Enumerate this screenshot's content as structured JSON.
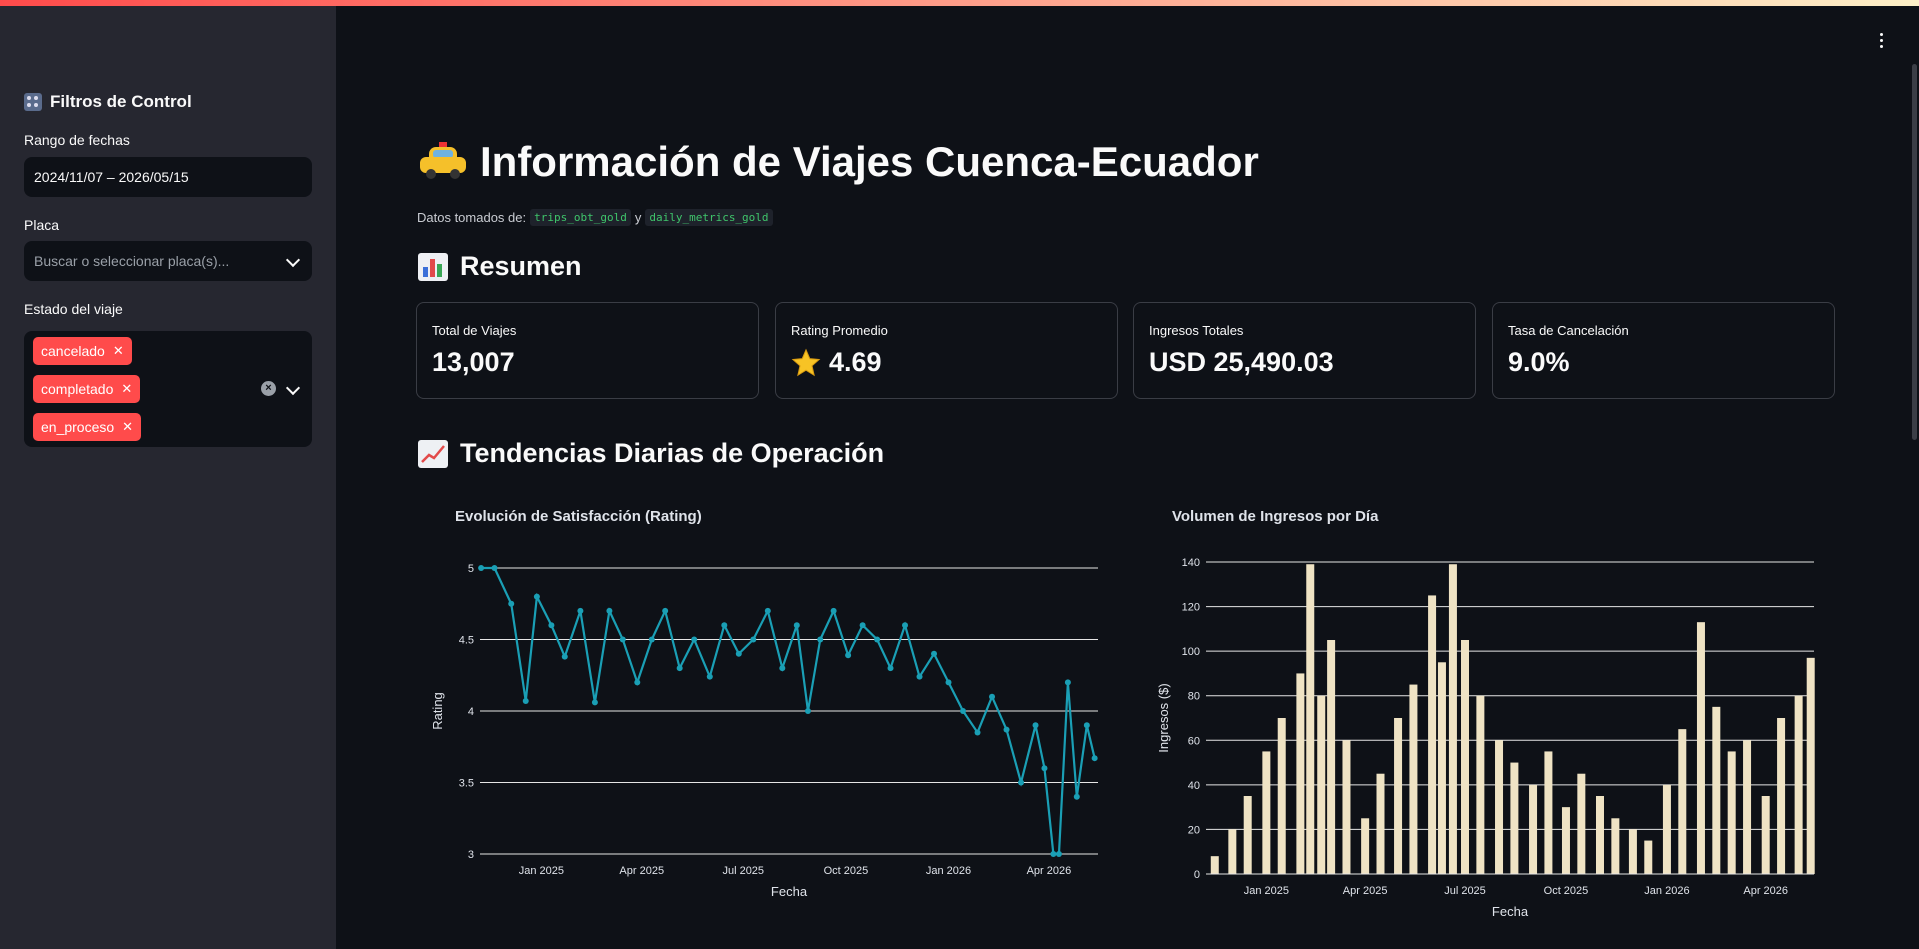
{
  "sidebar": {
    "title": "Filtros de Control",
    "date_label": "Rango de fechas",
    "date_value": "2024/11/07 – 2026/05/15",
    "plate_label": "Placa",
    "plate_placeholder": "Buscar o seleccionar placa(s)...",
    "status_label": "Estado del viaje",
    "status_tags": [
      "cancelado",
      "completado",
      "en_proceso"
    ]
  },
  "header": {
    "title": "Información de Viajes Cuenca-Ecuador",
    "source_prefix": "Datos tomados de:",
    "source_table_1": "trips_obt_gold",
    "source_join": "y",
    "source_table_2": "daily_metrics_gold"
  },
  "summary": {
    "heading": "Resumen",
    "metrics": [
      {
        "label": "Total de Viajes",
        "value": "13,007"
      },
      {
        "label": "Rating Promedio",
        "value": "4.69",
        "icon": "star-icon"
      },
      {
        "label": "Ingresos Totales",
        "value": "USD 25,490.03"
      },
      {
        "label": "Tasa de Cancelación",
        "value": "9.0%"
      }
    ]
  },
  "trends": {
    "heading": "Tendencias Diarias de Operación"
  },
  "chart_data": [
    {
      "type": "line",
      "title": "Evolución de Satisfacción (Rating)",
      "xlabel": "Fecha",
      "ylabel": "Rating",
      "x_ticks": [
        "Jan 2025",
        "Apr 2025",
        "Jul 2025",
        "Oct 2025",
        "Jan 2026",
        "Apr 2026"
      ],
      "x_range": [
        "2024-11-07",
        "2026-05-15"
      ],
      "ylim": [
        3,
        5
      ],
      "y_ticks": [
        3,
        3.5,
        4,
        4.5,
        5
      ],
      "color": "#1a9fb5",
      "series": [
        {
          "x": [
            "2024-11-08",
            "2024-11-20",
            "2024-12-05",
            "2024-12-18",
            "2024-12-28",
            "2025-01-10",
            "2025-01-22",
            "2025-02-05",
            "2025-02-18",
            "2025-03-03",
            "2025-03-15",
            "2025-03-28",
            "2025-04-10",
            "2025-04-22",
            "2025-05-05",
            "2025-05-18",
            "2025-06-01",
            "2025-06-14",
            "2025-06-27",
            "2025-07-10",
            "2025-07-23",
            "2025-08-05",
            "2025-08-18",
            "2025-08-28",
            "2025-09-08",
            "2025-09-20",
            "2025-10-03",
            "2025-10-16",
            "2025-10-29",
            "2025-11-10",
            "2025-11-23",
            "2025-12-06",
            "2025-12-19",
            "2026-01-01",
            "2026-01-14",
            "2026-01-27",
            "2026-02-09",
            "2026-02-22",
            "2026-03-07",
            "2026-03-20",
            "2026-03-28",
            "2026-04-05",
            "2026-04-10",
            "2026-04-18",
            "2026-04-26",
            "2026-05-05",
            "2026-05-12"
          ],
          "values": [
            5,
            5,
            4.75,
            4.07,
            4.8,
            4.6,
            4.38,
            4.7,
            4.06,
            4.7,
            4.5,
            4.2,
            4.5,
            4.7,
            4.3,
            4.5,
            4.24,
            4.6,
            4.4,
            4.5,
            4.7,
            4.3,
            4.6,
            4.0,
            4.5,
            4.7,
            4.39,
            4.6,
            4.5,
            4.3,
            4.6,
            4.24,
            4.4,
            4.2,
            4.0,
            3.85,
            4.1,
            3.87,
            3.5,
            3.9,
            3.6,
            3.0,
            3.0,
            4.2,
            3.4,
            3.9,
            3.67
          ]
        }
      ]
    },
    {
      "type": "bar",
      "title": "Volumen de Ingresos por Día",
      "xlabel": "Fecha",
      "ylabel": "Ingresos ($)",
      "x_ticks": [
        "Jan 2025",
        "Apr 2025",
        "Jul 2025",
        "Oct 2025",
        "Jan 2026",
        "Apr 2026"
      ],
      "x_range": [
        "2024-11-07",
        "2026-05-15"
      ],
      "ylim": [
        0,
        140
      ],
      "y_ticks": [
        0,
        20,
        40,
        60,
        80,
        100,
        120,
        140
      ],
      "color": "#efe3c4",
      "series": [
        {
          "x": [
            "2024-11-15",
            "2024-12-01",
            "2024-12-15",
            "2025-01-01",
            "2025-01-15",
            "2025-02-01",
            "2025-02-10",
            "2025-02-20",
            "2025-03-01",
            "2025-03-15",
            "2025-04-01",
            "2025-04-15",
            "2025-05-01",
            "2025-05-15",
            "2025-06-01",
            "2025-06-10",
            "2025-06-20",
            "2025-07-01",
            "2025-07-15",
            "2025-08-01",
            "2025-08-15",
            "2025-09-01",
            "2025-09-15",
            "2025-10-01",
            "2025-10-15",
            "2025-11-01",
            "2025-11-15",
            "2025-12-01",
            "2025-12-15",
            "2026-01-01",
            "2026-01-15",
            "2026-02-01",
            "2026-02-15",
            "2026-03-01",
            "2026-03-15",
            "2026-04-01",
            "2026-04-15",
            "2026-05-01",
            "2026-05-12"
          ],
          "values": [
            8,
            20,
            35,
            55,
            70,
            90,
            139,
            80,
            105,
            60,
            25,
            45,
            70,
            85,
            125,
            95,
            139,
            105,
            80,
            60,
            50,
            40,
            55,
            30,
            45,
            35,
            25,
            20,
            15,
            40,
            65,
            113,
            75,
            55,
            60,
            35,
            70,
            80,
            97
          ]
        }
      ]
    }
  ]
}
